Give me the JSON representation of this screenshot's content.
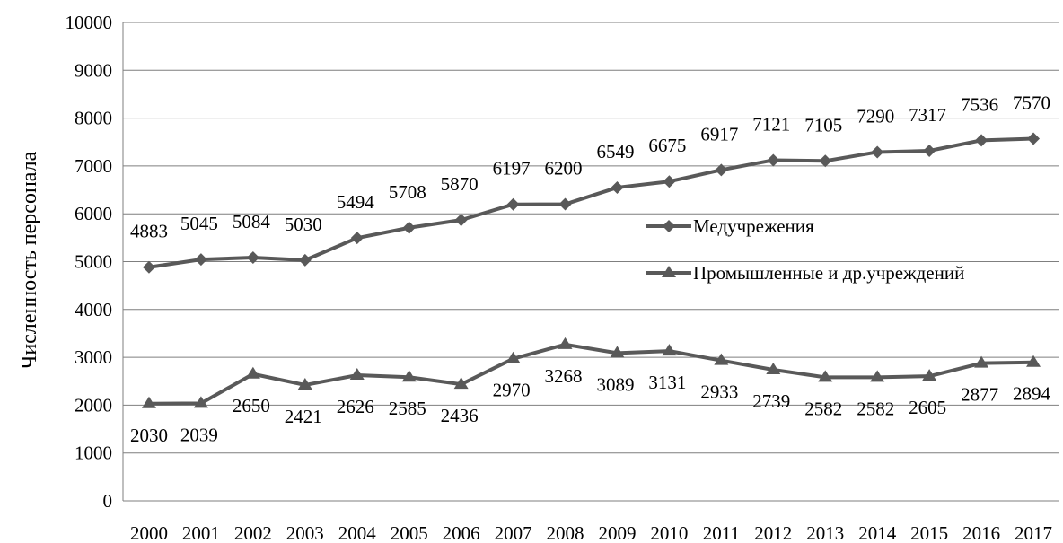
{
  "chart_data": {
    "type": "line",
    "title": "",
    "xlabel": "",
    "ylabel": "Численность персонала",
    "ylim": [
      0,
      10000
    ],
    "yticks": [
      0,
      1000,
      2000,
      3000,
      4000,
      5000,
      6000,
      7000,
      8000,
      9000,
      10000
    ],
    "grid": true,
    "legend_position": "right",
    "categories": [
      "2000",
      "2001",
      "2002",
      "2003",
      "2004",
      "2005",
      "2006",
      "2007",
      "2008",
      "2009",
      "2010",
      "2011",
      "2012",
      "2013",
      "2014",
      "2015",
      "2016",
      "2017"
    ],
    "series": [
      {
        "name": "Медучрежения",
        "marker": "diamond",
        "color": "#595959",
        "label_position": "above",
        "values": [
          4883,
          5045,
          5084,
          5030,
          5494,
          5708,
          5870,
          6197,
          6200,
          6549,
          6675,
          6917,
          7121,
          7105,
          7290,
          7317,
          7536,
          7570
        ]
      },
      {
        "name": "Промышленные и др.учреждений",
        "marker": "triangle",
        "color": "#595959",
        "label_position": "below",
        "values": [
          2030,
          2039,
          2650,
          2421,
          2626,
          2585,
          2436,
          2970,
          3268,
          3089,
          3131,
          2933,
          2739,
          2582,
          2582,
          2605,
          2877,
          2894
        ]
      }
    ]
  }
}
